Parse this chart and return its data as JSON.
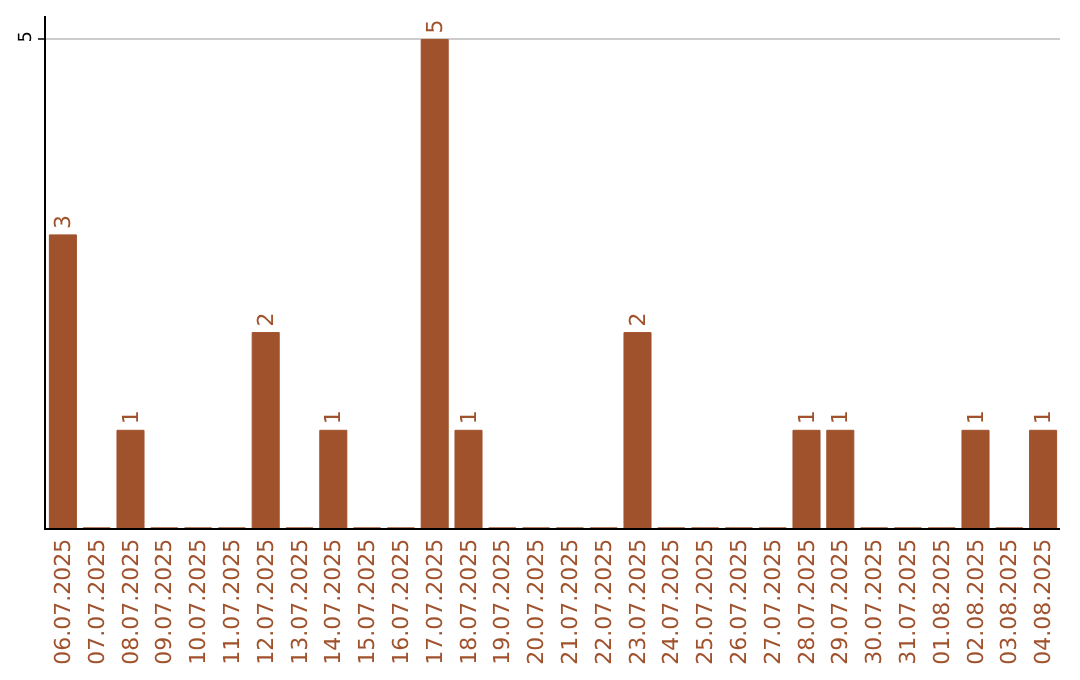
{
  "chart_data": {
    "type": "bar",
    "categories": [
      "06.07.2025",
      "07.07.2025",
      "08.07.2025",
      "09.07.2025",
      "10.07.2025",
      "11.07.2025",
      "12.07.2025",
      "13.07.2025",
      "14.07.2025",
      "15.07.2025",
      "16.07.2025",
      "17.07.2025",
      "18.07.2025",
      "19.07.2025",
      "20.07.2025",
      "21.07.2025",
      "22.07.2025",
      "23.07.2025",
      "24.07.2025",
      "25.07.2025",
      "26.07.2025",
      "27.07.2025",
      "28.07.2025",
      "29.07.2025",
      "30.07.2025",
      "31.07.2025",
      "01.08.2025",
      "02.08.2025",
      "03.08.2025",
      "04.08.2025"
    ],
    "values": [
      3,
      0,
      1,
      0,
      0,
      0,
      2,
      0,
      1,
      0,
      0,
      5,
      1,
      0,
      0,
      0,
      0,
      2,
      0,
      0,
      0,
      0,
      1,
      1,
      0,
      0,
      0,
      1,
      0,
      1
    ],
    "value_labels": [
      "3",
      null,
      "1",
      null,
      null,
      null,
      "2",
      null,
      "1",
      null,
      null,
      "5",
      "1",
      null,
      null,
      null,
      null,
      "2",
      null,
      null,
      null,
      null,
      "1",
      "1",
      null,
      null,
      null,
      "1",
      null,
      "1"
    ],
    "color": "#a0522d",
    "ylim": [
      0,
      5.24
    ],
    "yticks": [
      5
    ],
    "grid": "y"
  }
}
